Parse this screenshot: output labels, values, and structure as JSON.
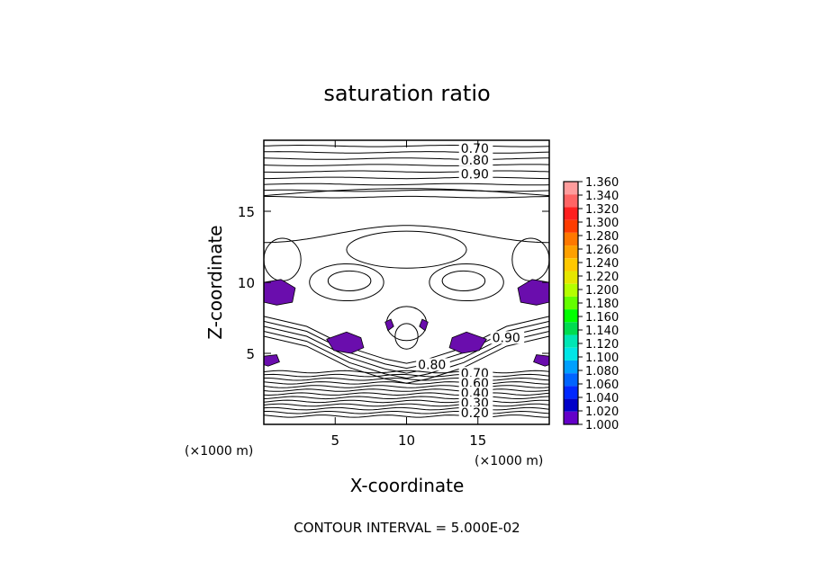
{
  "chart_data": {
    "type": "contour",
    "title": "saturation ratio",
    "xlabel": "X-coordinate",
    "ylabel": "Z-coordinate",
    "x_unit_label": "(×1000 m)",
    "y_unit_label": "(×1000 m)",
    "xlim": [
      0,
      20
    ],
    "ylim": [
      0,
      20
    ],
    "x_ticks": [
      5,
      10,
      15
    ],
    "y_ticks": [
      5,
      10,
      15
    ],
    "contour_interval_text": "CONTOUR INTERVAL = 5.000E-02",
    "contour_labels": [
      {
        "text": "0.70",
        "x": 13.8,
        "z": 19.1
      },
      {
        "text": "0.80",
        "x": 13.8,
        "z": 18.3
      },
      {
        "text": "0.90",
        "x": 13.8,
        "z": 17.3
      },
      {
        "text": "0.80",
        "x": 10.8,
        "z": 3.9
      },
      {
        "text": "0.90",
        "x": 16.0,
        "z": 5.8
      },
      {
        "text": "0.70",
        "x": 13.8,
        "z": 3.3
      },
      {
        "text": "0.60",
        "x": 13.8,
        "z": 2.6
      },
      {
        "text": "0.40",
        "x": 13.8,
        "z": 1.9
      },
      {
        "text": "0.30",
        "x": 13.8,
        "z": 1.2
      },
      {
        "text": "0.20",
        "x": 13.8,
        "z": 0.5
      }
    ],
    "colorbar": {
      "min": 1.0,
      "max": 1.36,
      "labels": [
        "1.360",
        "1.340",
        "1.320",
        "1.300",
        "1.280",
        "1.260",
        "1.240",
        "1.220",
        "1.200",
        "1.180",
        "1.160",
        "1.140",
        "1.120",
        "1.100",
        "1.080",
        "1.060",
        "1.040",
        "1.020",
        "1.000"
      ],
      "colors": [
        "#ff9c9c",
        "#ff6464",
        "#ff2020",
        "#ff3c00",
        "#ff7800",
        "#ffa000",
        "#ffc800",
        "#e6e600",
        "#b4ff00",
        "#64ff00",
        "#00ff00",
        "#00dc50",
        "#00e6b4",
        "#00e6e6",
        "#00a0ff",
        "#0064ff",
        "#0028ff",
        "#0000c8",
        "#6400c8"
      ]
    },
    "supersaturated_fill_color": "#6a0dad"
  }
}
